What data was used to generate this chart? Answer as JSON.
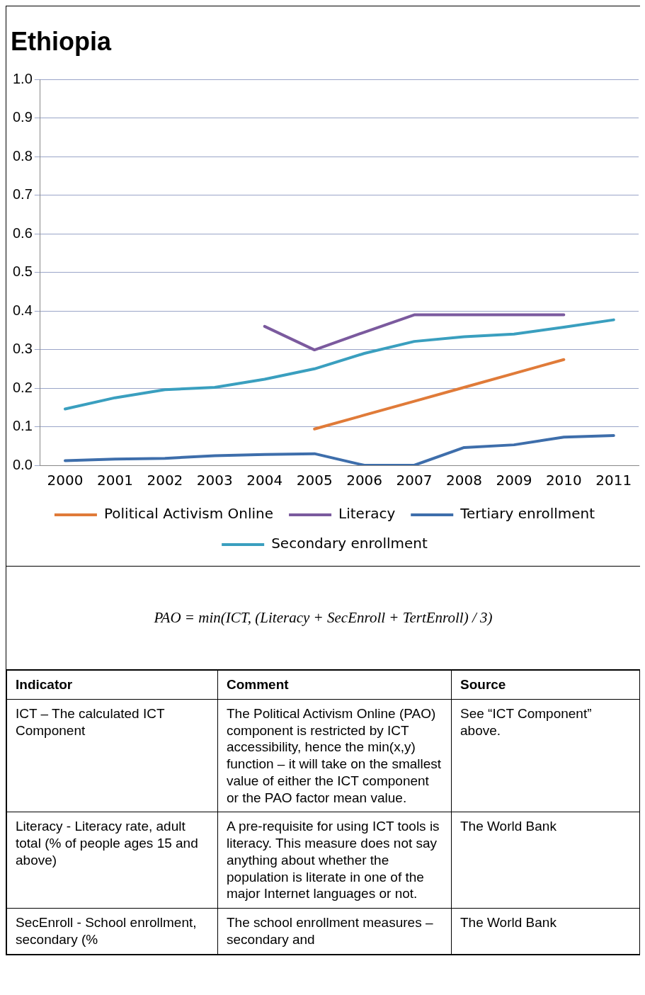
{
  "chart_data": {
    "type": "line",
    "title": "Ethiopia",
    "categories": [
      "2000",
      "2001",
      "2002",
      "2003",
      "2004",
      "2005",
      "2006",
      "2007",
      "2008",
      "2009",
      "2010",
      "2011"
    ],
    "series": [
      {
        "name": "Political Activism Online",
        "color": "#e07b39",
        "values": [
          null,
          null,
          null,
          null,
          null,
          0.094,
          0.13,
          0.166,
          0.202,
          0.238,
          0.274,
          null
        ]
      },
      {
        "name": "Literacy",
        "color": "#7b5a9e",
        "values": [
          null,
          null,
          null,
          null,
          0.36,
          0.299,
          0.345,
          0.39,
          0.39,
          0.39,
          0.39,
          null
        ]
      },
      {
        "name": "Tertiary enrollment",
        "color": "#3e6eab",
        "values": [
          0.012,
          0.016,
          0.018,
          0.025,
          0.028,
          0.03,
          0,
          0,
          0.046,
          0.053,
          0.073,
          0.077
        ]
      },
      {
        "name": "Secondary enrollment",
        "color": "#3a9fbf",
        "values": [
          0.146,
          0.175,
          0.196,
          0.202,
          0.223,
          0.25,
          0.29,
          0.321,
          0.333,
          0.34,
          0.358,
          0.377
        ]
      }
    ],
    "ylim": [
      0,
      1
    ],
    "yticks": [
      {
        "value": 0,
        "label": "0.0"
      },
      {
        "value": 0.1,
        "label": "0.1"
      },
      {
        "value": 0.2,
        "label": "0.2"
      },
      {
        "value": 0.3,
        "label": "0.3"
      },
      {
        "value": 0.4,
        "label": "0.4"
      },
      {
        "value": 0.5,
        "label": "0.5"
      },
      {
        "value": 0.6,
        "label": "0.6"
      },
      {
        "value": 0.7,
        "label": "0.7"
      },
      {
        "value": 0.8,
        "label": "0.8"
      },
      {
        "value": 0.9,
        "label": "0.9"
      },
      {
        "value": 1,
        "label": "1.0"
      }
    ],
    "grid": "y",
    "legend": "bottom",
    "marker": "none",
    "line_style": "solid",
    "annotations": [
      "PAO = min(ICT, (Literacy + SecEnroll + TertEnroll) / 3)",
      "Indicator",
      "Comment",
      "Source",
      "ICT – The calculated ICT Component",
      "The Political Activism Online (PAO) component is restricted by ICT accessibility, hence the min(x,y) function – it will take on the smallest value of either the ICT component or the PAO factor mean value.",
      "See “ICT Component” above.",
      "Literacy - Literacy rate, adult total (% of people ages 15 and above)",
      "A pre-requisite for using ICT tools is literacy. This measure does not say anything about whether the population is literate in one of the major Internet languages or not.",
      "The World Bank",
      "SecEnroll - School enrollment, secondary (%",
      "The school enrollment measures – secondary and",
      "The World Bank"
    ]
  }
}
